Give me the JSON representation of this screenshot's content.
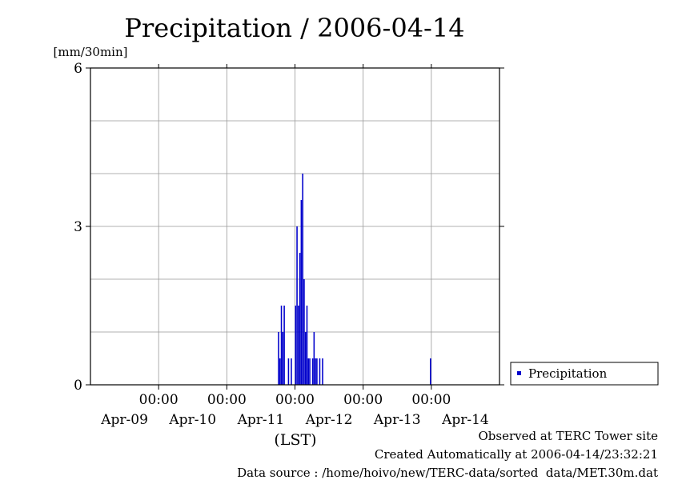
{
  "chart_data": {
    "type": "bar",
    "title": "Precipitation / 2006-04-14",
    "ylabel": "[mm/30min]",
    "xlabel": "(LST)",
    "ylim": [
      0,
      6
    ],
    "yticks": [
      "0",
      "3",
      "6"
    ],
    "xlim": [
      "2006-04-09T00:00",
      "2006-04-15T00:00"
    ],
    "x_time_ticks": [
      "00:00",
      "00:00",
      "00:00",
      "00:00",
      "00:00"
    ],
    "x_time_tick_dates": [
      "2006-04-10T00:00",
      "2006-04-11T00:00",
      "2006-04-12T00:00",
      "2006-04-13T00:00",
      "2006-04-14T00:00"
    ],
    "x_date_labels": [
      "Apr-09",
      "Apr-10",
      "Apr-11",
      "Apr-12",
      "Apr-13",
      "Apr-14"
    ],
    "x_date_label_dates": [
      "2006-04-09T12:00",
      "2006-04-10T12:00",
      "2006-04-11T12:00",
      "2006-04-12T12:00",
      "2006-04-13T12:00",
      "2006-04-14T12:00"
    ],
    "grid": true,
    "legend_position": "right",
    "series": [
      {
        "name": "Precipitation",
        "color": "#0000cc",
        "x": [
          "2006-04-11T18:00",
          "2006-04-11T18:30",
          "2006-04-11T19:00",
          "2006-04-11T19:30",
          "2006-04-11T20:00",
          "2006-04-11T21:30",
          "2006-04-11T22:30",
          "2006-04-12T00:00",
          "2006-04-12T00:30",
          "2006-04-12T01:00",
          "2006-04-12T01:30",
          "2006-04-12T02:00",
          "2006-04-12T02:30",
          "2006-04-12T03:00",
          "2006-04-12T03:30",
          "2006-04-12T04:00",
          "2006-04-12T04:30",
          "2006-04-12T05:00",
          "2006-04-12T06:00",
          "2006-04-12T06:30",
          "2006-04-12T07:00",
          "2006-04-12T07:30",
          "2006-04-12T08:30",
          "2006-04-12T09:30",
          "2006-04-13T23:30"
        ],
        "values": [
          1.0,
          0.5,
          1.5,
          1.0,
          1.5,
          0.5,
          0.5,
          1.5,
          3.0,
          1.5,
          2.5,
          3.5,
          4.0,
          2.0,
          1.0,
          1.5,
          0.5,
          0.5,
          0.5,
          1.0,
          0.5,
          0.5,
          0.5,
          0.5,
          0.5
        ]
      }
    ]
  },
  "footer": {
    "line1": "Observed at TERC Tower site",
    "line2": "Created Automatically at 2006-04-14/23:32:21",
    "line3": "Data source : /home/hoivo/new/TERC-data/sorted  data/MET.30m.dat"
  }
}
